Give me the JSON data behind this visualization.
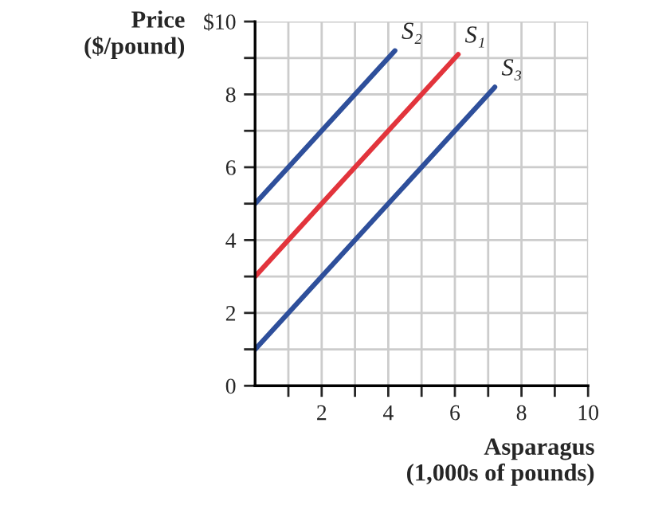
{
  "chart_data": {
    "type": "line",
    "xlabel": "Asparagus\n(1,000s of pounds)",
    "ylabel": "Price\n($/pound)",
    "xlim": [
      0,
      10
    ],
    "ylim": [
      0,
      10
    ],
    "xticks": [
      {
        "value": 1,
        "label": null
      },
      2,
      {
        "value": 3,
        "label": null
      },
      4,
      {
        "value": 5,
        "label": null
      },
      6,
      {
        "value": 7,
        "label": null
      },
      8,
      {
        "value": 9,
        "label": null
      },
      10
    ],
    "yticks": [
      0,
      {
        "value": 1,
        "label": null
      },
      2,
      {
        "value": 3,
        "label": null
      },
      4,
      {
        "value": 5,
        "label": null
      },
      6,
      {
        "value": 7,
        "label": null
      },
      8,
      {
        "value": 9,
        "label": null
      },
      {
        "value": 10,
        "label": "$10"
      }
    ],
    "grid": true,
    "legend": false,
    "marker": "none",
    "line_style": "solid",
    "series": [
      {
        "name": "S₂",
        "color": "#2e4f9b",
        "x": [
          0,
          4.2
        ],
        "values": [
          5,
          9.2
        ]
      },
      {
        "name": "S₁",
        "color": "#e2343c",
        "x": [
          0,
          6.1
        ],
        "values": [
          3,
          9.1
        ]
      },
      {
        "name": "S₃",
        "color": "#2e4f9b",
        "x": [
          0,
          7.2
        ],
        "values": [
          1,
          8.2
        ]
      }
    ]
  }
}
